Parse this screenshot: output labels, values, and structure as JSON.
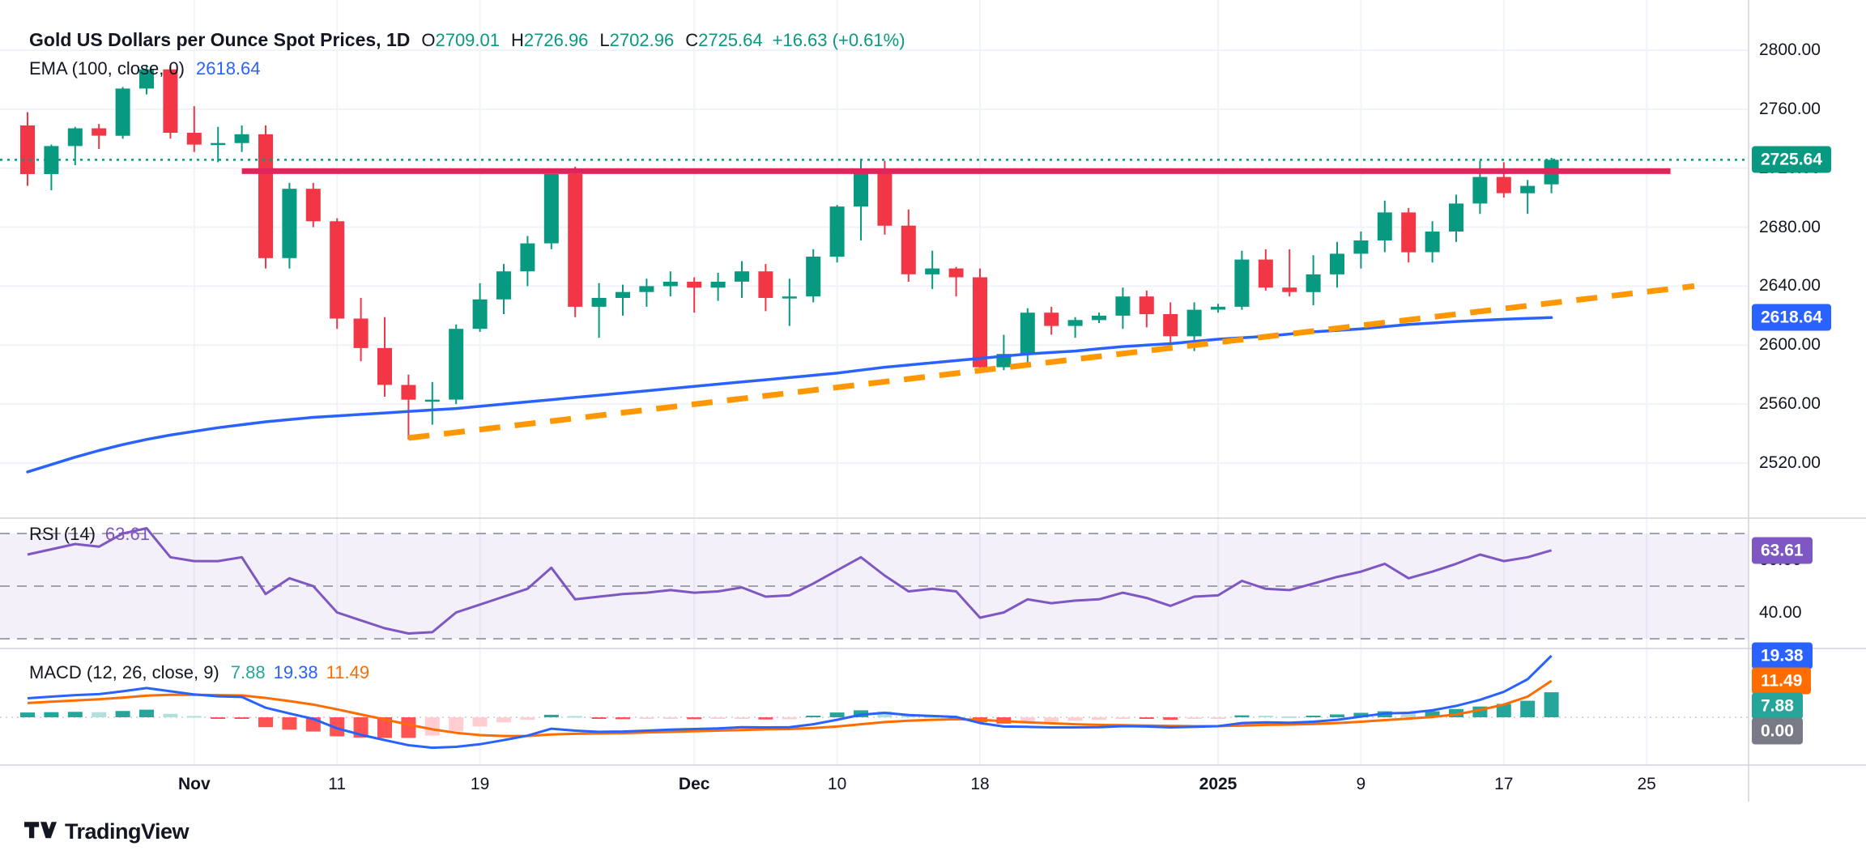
{
  "header": {
    "title": "Gold US Dollars per Ounce Spot Prices, 1D",
    "ohlc_fields": [
      {
        "label": "O",
        "value": "2709.01"
      },
      {
        "label": "H",
        "value": "2726.96"
      },
      {
        "label": "L",
        "value": "2702.96"
      },
      {
        "label": "C",
        "value": "2725.64"
      }
    ],
    "change": "+16.63 (+0.61%)",
    "ema_legend": {
      "label": "EMA (100, close, 0)",
      "value": "2618.64"
    }
  },
  "rsi_pane": {
    "label": "RSI (14)",
    "value": "63.61",
    "badge": {
      "text": "63.61",
      "color": "#7E57C2"
    },
    "axis_labels": [
      {
        "text": "60.00",
        "value": 60
      },
      {
        "text": "40.00",
        "value": 40
      }
    ],
    "levels": [
      70,
      50,
      30
    ]
  },
  "macd_pane": {
    "label": "MACD (12, 26, close, 9)",
    "hist_value": "7.88",
    "macd_value": "19.38",
    "signal_value": "11.49",
    "zero_label": "0.00"
  },
  "price_axis": {
    "labels": [
      {
        "text": "2800.00",
        "price": 2800
      },
      {
        "text": "2760.00",
        "price": 2760
      },
      {
        "text": "2720.00",
        "price": 2720
      },
      {
        "text": "2680.00",
        "price": 2680
      },
      {
        "text": "2640.00",
        "price": 2640
      },
      {
        "text": "2600.00",
        "price": 2600
      },
      {
        "text": "2560.00",
        "price": 2560
      },
      {
        "text": "2520.00",
        "price": 2520
      }
    ],
    "close_badge": {
      "text": "2725.64",
      "color": "#089981"
    },
    "ema_badge": {
      "text": "2618.64",
      "color": "#2962FF"
    }
  },
  "time_axis": {
    "ticks": [
      {
        "label": "Nov",
        "index": 7,
        "major": true
      },
      {
        "label": "11",
        "index": 13,
        "major": false
      },
      {
        "label": "19",
        "index": 19,
        "major": false
      },
      {
        "label": "Dec",
        "index": 28,
        "major": true
      },
      {
        "label": "10",
        "index": 34,
        "major": false
      },
      {
        "label": "18",
        "index": 40,
        "major": false
      },
      {
        "label": "2025",
        "index": 50,
        "major": true
      },
      {
        "label": "9",
        "index": 56,
        "major": false
      },
      {
        "label": "17",
        "index": 62,
        "major": false
      },
      {
        "label": "25",
        "index": 68,
        "major": false
      }
    ]
  },
  "branding": {
    "label": "TradingView"
  },
  "colors": {
    "up": "#089981",
    "down": "#F23645",
    "ema": "#2962FF",
    "resistance": "#E0245C",
    "trend": "#FF9800",
    "rsi": "#7E57C2",
    "rsi_band": "rgba(126,87,194,0.09)",
    "level_dash": "#A0A3AE",
    "macd": "#2962FF",
    "signal": "#FF6D00",
    "hist_up_grow": "#26A69A",
    "hist_up_fall": "#B2DFDB",
    "hist_down_fall": "#FF5252",
    "hist_down_grow": "#FFCDD2",
    "grid": "#F0F3FA",
    "separator": "#D1D4DC",
    "axis_text": "#131722",
    "neutral_badge": "#787B86",
    "last_price": "#089981"
  },
  "chart_data": {
    "type": "candlestick",
    "title": "Gold US Dollars per Ounce Spot Prices",
    "interval": "1D",
    "current_ohlc": {
      "open": 2709.01,
      "high": 2726.96,
      "low": 2702.96,
      "close": 2725.64,
      "change": 16.63,
      "change_pct": 0.61
    },
    "last_price": 2725.64,
    "price_ylim": [
      2483,
      2834
    ],
    "rsi_ylim": [
      26,
      76
    ],
    "macd_ylim": [
      -14,
      21
    ],
    "candles": [
      [
        "Oct 23",
        2749,
        2758,
        2708,
        2716
      ],
      [
        "Oct 24",
        2716,
        2736,
        2705,
        2735
      ],
      [
        "Oct 25",
        2735,
        2748,
        2722,
        2747
      ],
      [
        "Oct 28",
        2747,
        2750,
        2733,
        2742
      ],
      [
        "Oct 29",
        2742,
        2775,
        2740,
        2774
      ],
      [
        "Oct 30",
        2774,
        2790,
        2770,
        2787
      ],
      [
        "Oct 31",
        2787,
        2790,
        2740,
        2744
      ],
      [
        "Nov 1",
        2744,
        2762,
        2731,
        2736
      ],
      [
        "Nov 4",
        2736,
        2748,
        2724,
        2737
      ],
      [
        "Nov 5",
        2737,
        2749,
        2731,
        2743
      ],
      [
        "Nov 6",
        2743,
        2749,
        2652,
        2659
      ],
      [
        "Nov 7",
        2659,
        2710,
        2652,
        2706
      ],
      [
        "Nov 8",
        2706,
        2710,
        2680,
        2684
      ],
      [
        "Nov 11",
        2684,
        2686,
        2611,
        2618
      ],
      [
        "Nov 12",
        2618,
        2632,
        2589,
        2598
      ],
      [
        "Nov 13",
        2598,
        2619,
        2565,
        2573
      ],
      [
        "Nov 14",
        2573,
        2580,
        2536,
        2563
      ],
      [
        "Nov 15",
        2563,
        2575,
        2546,
        2563
      ],
      [
        "Nov 18",
        2563,
        2614,
        2560,
        2611
      ],
      [
        "Nov 19",
        2611,
        2642,
        2609,
        2631
      ],
      [
        "Nov 20",
        2631,
        2655,
        2621,
        2650
      ],
      [
        "Nov 21",
        2650,
        2674,
        2640,
        2669
      ],
      [
        "Nov 22",
        2669,
        2716,
        2665,
        2716
      ],
      [
        "Nov 25",
        2716,
        2721,
        2619,
        2626
      ],
      [
        "Nov 26",
        2626,
        2642,
        2605,
        2632
      ],
      [
        "Nov 27",
        2632,
        2641,
        2620,
        2636
      ],
      [
        "Nov 28",
        2636,
        2645,
        2626,
        2640
      ],
      [
        "Nov 29",
        2640,
        2650,
        2633,
        2643
      ],
      [
        "Dec 2",
        2643,
        2646,
        2622,
        2639
      ],
      [
        "Dec 3",
        2639,
        2649,
        2630,
        2643
      ],
      [
        "Dec 4",
        2643,
        2657,
        2632,
        2650
      ],
      [
        "Dec 5",
        2650,
        2655,
        2623,
        2632
      ],
      [
        "Dec 6",
        2632,
        2645,
        2613,
        2633
      ],
      [
        "Dec 9",
        2633,
        2665,
        2629,
        2660
      ],
      [
        "Dec 10",
        2660,
        2695,
        2656,
        2694
      ],
      [
        "Dec 11",
        2694,
        2726,
        2671,
        2718
      ],
      [
        "Dec 12",
        2718,
        2725,
        2675,
        2681
      ],
      [
        "Dec 13",
        2681,
        2692,
        2643,
        2648
      ],
      [
        "Dec 16",
        2648,
        2664,
        2638,
        2652
      ],
      [
        "Dec 17",
        2652,
        2653,
        2633,
        2646
      ],
      [
        "Dec 18",
        2646,
        2652,
        2584,
        2585
      ],
      [
        "Dec 19",
        2585,
        2607,
        2583,
        2594
      ],
      [
        "Dec 20",
        2594,
        2625,
        2588,
        2622
      ],
      [
        "Dec 23",
        2622,
        2626,
        2607,
        2613
      ],
      [
        "Dec 24",
        2613,
        2619,
        2605,
        2617
      ],
      [
        "Dec 25",
        2617,
        2622,
        2615,
        2620
      ],
      [
        "Dec 26",
        2620,
        2639,
        2611,
        2633
      ],
      [
        "Dec 27",
        2633,
        2637,
        2612,
        2621
      ],
      [
        "Dec 30",
        2621,
        2629,
        2596,
        2606
      ],
      [
        "Dec 31",
        2606,
        2629,
        2596,
        2624
      ],
      [
        "Jan 1",
        2624,
        2628,
        2622,
        2626
      ],
      [
        "Jan 2",
        2626,
        2664,
        2624,
        2658
      ],
      [
        "Jan 3",
        2658,
        2665,
        2637,
        2639
      ],
      [
        "Jan 6",
        2639,
        2665,
        2633,
        2636
      ],
      [
        "Jan 7",
        2636,
        2661,
        2627,
        2648
      ],
      [
        "Jan 8",
        2648,
        2670,
        2639,
        2662
      ],
      [
        "Jan 9",
        2662,
        2677,
        2652,
        2671
      ],
      [
        "Jan 10",
        2671,
        2698,
        2663,
        2690
      ],
      [
        "Jan 13",
        2690,
        2693,
        2656,
        2663
      ],
      [
        "Jan 14",
        2663,
        2684,
        2656,
        2677
      ],
      [
        "Jan 15",
        2677,
        2702,
        2670,
        2696
      ],
      [
        "Jan 16",
        2696,
        2725,
        2689,
        2714
      ],
      [
        "Jan 17",
        2714,
        2724,
        2700,
        2703
      ],
      [
        "Jan 20",
        2703,
        2712,
        2689,
        2708
      ],
      [
        "Jan 21",
        2709.01,
        2726.96,
        2702.96,
        2725.64
      ]
    ],
    "ema100": [
      2514,
      2519,
      2524,
      2528.5,
      2532.5,
      2536,
      2539,
      2541.5,
      2544,
      2546,
      2548,
      2549.5,
      2551,
      2552,
      2553,
      2554,
      2555,
      2556,
      2557,
      2558.5,
      2560,
      2561.5,
      2563,
      2564.5,
      2566,
      2567.5,
      2569,
      2570.5,
      2572,
      2573.5,
      2575,
      2576.5,
      2578,
      2579.5,
      2581,
      2583,
      2585,
      2586.5,
      2588,
      2589.5,
      2591,
      2592.5,
      2594,
      2595,
      2596,
      2597.5,
      2599,
      2600,
      2601,
      2602.5,
      2604,
      2605,
      2606,
      2607.5,
      2609,
      2610,
      2611,
      2612.5,
      2614,
      2615,
      2616,
      2616.8,
      2617.5,
      2618.1,
      2618.64
    ],
    "rsi14": [
      62,
      64,
      66,
      65,
      70,
      72,
      61,
      59.5,
      59.5,
      61,
      47,
      53,
      50,
      40,
      37,
      34,
      32,
      32.5,
      40,
      43,
      46,
      49,
      57,
      45,
      46,
      47,
      47.5,
      48.5,
      47.5,
      48,
      49.5,
      46,
      46.5,
      51,
      56,
      61,
      54,
      48,
      49,
      48,
      38,
      40,
      45,
      43.5,
      44.5,
      45,
      47.5,
      45.5,
      42.5,
      46,
      46.5,
      52,
      49,
      48.5,
      51,
      53.5,
      55.5,
      58.5,
      53,
      55.5,
      58.5,
      62,
      59.5,
      61,
      63.61
    ],
    "macd": {
      "current": {
        "macd": 19.38,
        "signal": 11.49,
        "histogram": 7.88
      },
      "macd_line": [
        6.0,
        6.5,
        7.0,
        7.3,
        8.2,
        9.2,
        8.2,
        7.2,
        6.6,
        6.4,
        3.0,
        1.2,
        -0.5,
        -3.5,
        -5.5,
        -7.2,
        -8.8,
        -9.6,
        -9.3,
        -8.5,
        -7.2,
        -5.8,
        -3.6,
        -4.2,
        -4.6,
        -4.5,
        -4.2,
        -3.9,
        -3.7,
        -3.5,
        -3.1,
        -3.2,
        -3.1,
        -2.2,
        -0.8,
        0.8,
        1.4,
        0.7,
        0.4,
        0.1,
        -1.8,
        -2.9,
        -3.0,
        -3.2,
        -3.2,
        -3.1,
        -2.8,
        -2.9,
        -3.2,
        -3.0,
        -2.8,
        -1.8,
        -1.6,
        -1.7,
        -1.4,
        -0.8,
        0.2,
        1.2,
        1.4,
        2.2,
        3.6,
        5.5,
        8.0,
        12.0,
        19.38
      ],
      "signal_line": [
        4.5,
        4.9,
        5.3,
        5.7,
        6.2,
        6.8,
        7.1,
        7.1,
        7.0,
        6.9,
        6.1,
        5.1,
        4.0,
        2.5,
        0.9,
        -0.7,
        -2.3,
        -3.8,
        -4.9,
        -5.6,
        -5.9,
        -5.9,
        -5.4,
        -5.2,
        -5.1,
        -5.0,
        -4.8,
        -4.6,
        -4.4,
        -4.2,
        -4.0,
        -3.8,
        -3.7,
        -3.4,
        -2.9,
        -2.2,
        -1.5,
        -1.1,
        -0.8,
        -0.6,
        -0.8,
        -1.2,
        -1.6,
        -1.9,
        -2.2,
        -2.4,
        -2.5,
        -2.6,
        -2.7,
        -2.8,
        -2.8,
        -2.6,
        -2.4,
        -2.3,
        -2.1,
        -1.8,
        -1.4,
        -0.9,
        -0.4,
        0.1,
        0.9,
        2.3,
        4.0,
        6.5,
        11.49
      ],
      "histogram": [
        1.5,
        1.6,
        1.7,
        1.6,
        2.0,
        2.4,
        1.1,
        0.4,
        -0.4,
        -0.5,
        -3.1,
        -3.9,
        -4.5,
        -6.0,
        -6.4,
        -6.5,
        -6.5,
        -5.8,
        -4.4,
        -2.9,
        -1.6,
        -0.8,
        0.8,
        0.4,
        -0.5,
        -0.6,
        -0.5,
        -0.4,
        -0.6,
        -0.5,
        -0.4,
        -0.7,
        -0.6,
        0.5,
        1.5,
        2.2,
        1.8,
        0.8,
        0.3,
        -0.3,
        -1.5,
        -2.0,
        -1.7,
        -1.4,
        -1.1,
        -0.8,
        -0.5,
        -0.5,
        -0.8,
        -0.4,
        -0.2,
        0.6,
        0.5,
        0.3,
        0.5,
        0.9,
        1.4,
        1.9,
        1.6,
        1.9,
        2.6,
        3.4,
        4.2,
        5.2,
        7.88
      ]
    },
    "resistance": {
      "price": 2718,
      "start_index": 9,
      "end_index": 69
    },
    "trendline": {
      "from": {
        "index": 16,
        "price": 2537
      },
      "to": {
        "index": 70,
        "price": 2640
      }
    }
  }
}
